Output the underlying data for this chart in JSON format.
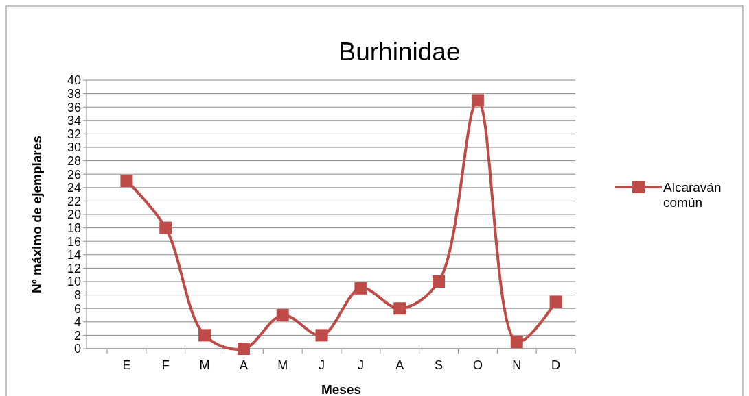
{
  "chart_data": {
    "type": "line",
    "title": "Burhinidae",
    "xlabel": "Meses",
    "ylabel": "Nº máximo de ejemplares",
    "categories": [
      "E",
      "F",
      "M",
      "A",
      "M",
      "J",
      "J",
      "A",
      "S",
      "O",
      "N",
      "D"
    ],
    "series": [
      {
        "name": "Alcaraván común",
        "color": "#be4b48",
        "values": [
          25,
          18,
          2,
          0,
          5,
          2,
          9,
          6,
          10,
          37,
          1,
          7
        ]
      }
    ],
    "ylim": [
      0,
      40
    ],
    "yticks": [
      0,
      2,
      4,
      6,
      8,
      10,
      12,
      14,
      16,
      18,
      20,
      22,
      24,
      26,
      28,
      30,
      32,
      34,
      36,
      38,
      40
    ],
    "grid": "y",
    "legend": "right",
    "marker": "square",
    "line_style": "solid"
  }
}
